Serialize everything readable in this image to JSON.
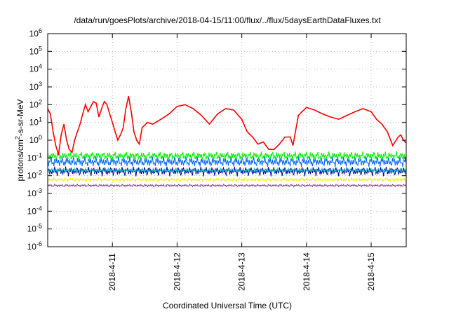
{
  "chart_data": {
    "type": "line",
    "title": "/data/run/goesPlots/archive/2018-04-15/11:00/flux/../flux/5daysEarthDataFluxes.txt",
    "xlabel": "Coordinated Universal Time (UTC)",
    "ylabel": "protons/cm2-s-sr-MeV",
    "ylabel_parts": [
      "protons/cm",
      "2",
      "-s-sr-MeV"
    ],
    "yscale": "log",
    "ylim": [
      1e-06,
      1000000.0
    ],
    "xlim": [
      "2018-04-10T00:00",
      "2018-04-15T13:00"
    ],
    "grid": true,
    "yticks": [
      {
        "value": 1e-06,
        "base": "10",
        "exp": "-6"
      },
      {
        "value": 1e-05,
        "base": "10",
        "exp": "-5"
      },
      {
        "value": 0.0001,
        "base": "10",
        "exp": "-4"
      },
      {
        "value": 0.001,
        "base": "10",
        "exp": "-3"
      },
      {
        "value": 0.01,
        "base": "10",
        "exp": "-2"
      },
      {
        "value": 0.1,
        "base": "10",
        "exp": "-1"
      },
      {
        "value": 1.0,
        "base": "10",
        "exp": "0"
      },
      {
        "value": 10.0,
        "base": "10",
        "exp": "1"
      },
      {
        "value": 100.0,
        "base": "10",
        "exp": "2"
      },
      {
        "value": 1000.0,
        "base": "10",
        "exp": "3"
      },
      {
        "value": 10000.0,
        "base": "10",
        "exp": "4"
      },
      {
        "value": 100000.0,
        "base": "10",
        "exp": "5"
      },
      {
        "value": 1000000.0,
        "base": "10",
        "exp": "6"
      }
    ],
    "xticks": [
      {
        "value": "2018-04-11T00:00",
        "label": "2018-4-11"
      },
      {
        "value": "2018-04-12T00:00",
        "label": "2018-4-12"
      },
      {
        "value": "2018-04-13T00:00",
        "label": "2018-4-13"
      },
      {
        "value": "2018-04-14T00:00",
        "label": "2018-4-14"
      },
      {
        "value": "2018-04-15T00:00",
        "label": "2018-4-15"
      }
    ],
    "series": [
      {
        "color": "#ff0000",
        "noisy": false,
        "x": [
          "2018-04-10T00:00",
          "2018-04-10T01:00",
          "2018-04-10T02:00",
          "2018-04-10T03:00",
          "2018-04-10T04:00",
          "2018-04-10T05:00",
          "2018-04-10T06:00",
          "2018-04-10T07:00",
          "2018-04-10T08:00",
          "2018-04-10T09:00",
          "2018-04-10T10:00",
          "2018-04-10T11:00",
          "2018-04-10T12:00",
          "2018-04-10T13:00",
          "2018-04-10T14:00",
          "2018-04-10T15:00",
          "2018-04-10T16:00",
          "2018-04-10T17:00",
          "2018-04-10T18:00",
          "2018-04-10T19:00",
          "2018-04-10T20:00",
          "2018-04-10T21:00",
          "2018-04-10T22:00",
          "2018-04-10T23:00",
          "2018-04-11T00:00",
          "2018-04-11T01:00",
          "2018-04-11T02:00",
          "2018-04-11T03:00",
          "2018-04-11T04:00",
          "2018-04-11T05:00",
          "2018-04-11T06:00",
          "2018-04-11T07:00",
          "2018-04-11T08:00",
          "2018-04-11T09:00",
          "2018-04-11T10:00",
          "2018-04-11T11:00",
          "2018-04-11T13:00",
          "2018-04-11T15:00",
          "2018-04-11T18:00",
          "2018-04-11T21:00",
          "2018-04-12T00:00",
          "2018-04-12T03:00",
          "2018-04-12T06:00",
          "2018-04-12T09:00",
          "2018-04-12T12:00",
          "2018-04-12T15:00",
          "2018-04-12T18:00",
          "2018-04-12T21:00",
          "2018-04-13T00:00",
          "2018-04-13T02:00",
          "2018-04-13T04:00",
          "2018-04-13T06:00",
          "2018-04-13T08:00",
          "2018-04-13T10:00",
          "2018-04-13T12:00",
          "2018-04-13T14:00",
          "2018-04-13T16:00",
          "2018-04-13T18:00",
          "2018-04-13T19:00",
          "2018-04-13T21:00",
          "2018-04-14T00:00",
          "2018-04-14T03:00",
          "2018-04-14T06:00",
          "2018-04-14T09:00",
          "2018-04-14T12:00",
          "2018-04-14T15:00",
          "2018-04-14T18:00",
          "2018-04-14T21:00",
          "2018-04-15T00:00",
          "2018-04-15T02:00",
          "2018-04-15T04:00",
          "2018-04-15T06:00",
          "2018-04-15T08:00",
          "2018-04-15T10:00",
          "2018-04-15T11:00",
          "2018-04-15T12:00",
          "2018-04-15T13:00"
        ],
        "values": [
          60,
          30,
          3,
          0.5,
          0.15,
          2,
          8,
          1,
          0.3,
          0.2,
          1,
          3,
          8,
          30,
          100,
          40,
          80,
          150,
          120,
          20,
          60,
          150,
          100,
          30,
          10,
          3,
          1,
          2,
          5,
          60,
          300,
          40,
          3,
          1,
          0.6,
          5,
          10,
          8,
          15,
          30,
          80,
          100,
          60,
          25,
          8,
          30,
          60,
          50,
          15,
          3,
          1.5,
          0.6,
          0.8,
          0.3,
          0.3,
          0.6,
          1.5,
          1.5,
          0.5,
          25,
          70,
          50,
          30,
          20,
          15,
          25,
          40,
          60,
          40,
          15,
          8,
          3,
          0.5,
          1.5,
          2,
          1,
          0.7
        ]
      },
      {
        "color": "#00ee00",
        "noisy": true,
        "base": 0.13,
        "spread": 0.28,
        "phase": 1.3
      },
      {
        "color": "#0066ff",
        "noisy": true,
        "base": 0.06,
        "spread": 0.32,
        "phase": 2.7
      },
      {
        "color": "#000099",
        "noisy": true,
        "base": 0.018,
        "spread": 0.3,
        "phase": 4.1
      },
      {
        "color": "#00bbbb",
        "noisy": true,
        "base": 0.02,
        "spread": 0.12,
        "phase": 5.6
      },
      {
        "color": "#eeee00",
        "noisy": true,
        "base": 0.006,
        "spread": 0.1,
        "phase": 0.4
      },
      {
        "color": "#8b3a8b",
        "noisy": true,
        "base": 0.0028,
        "spread": 0.08,
        "phase": 3.3
      }
    ]
  }
}
